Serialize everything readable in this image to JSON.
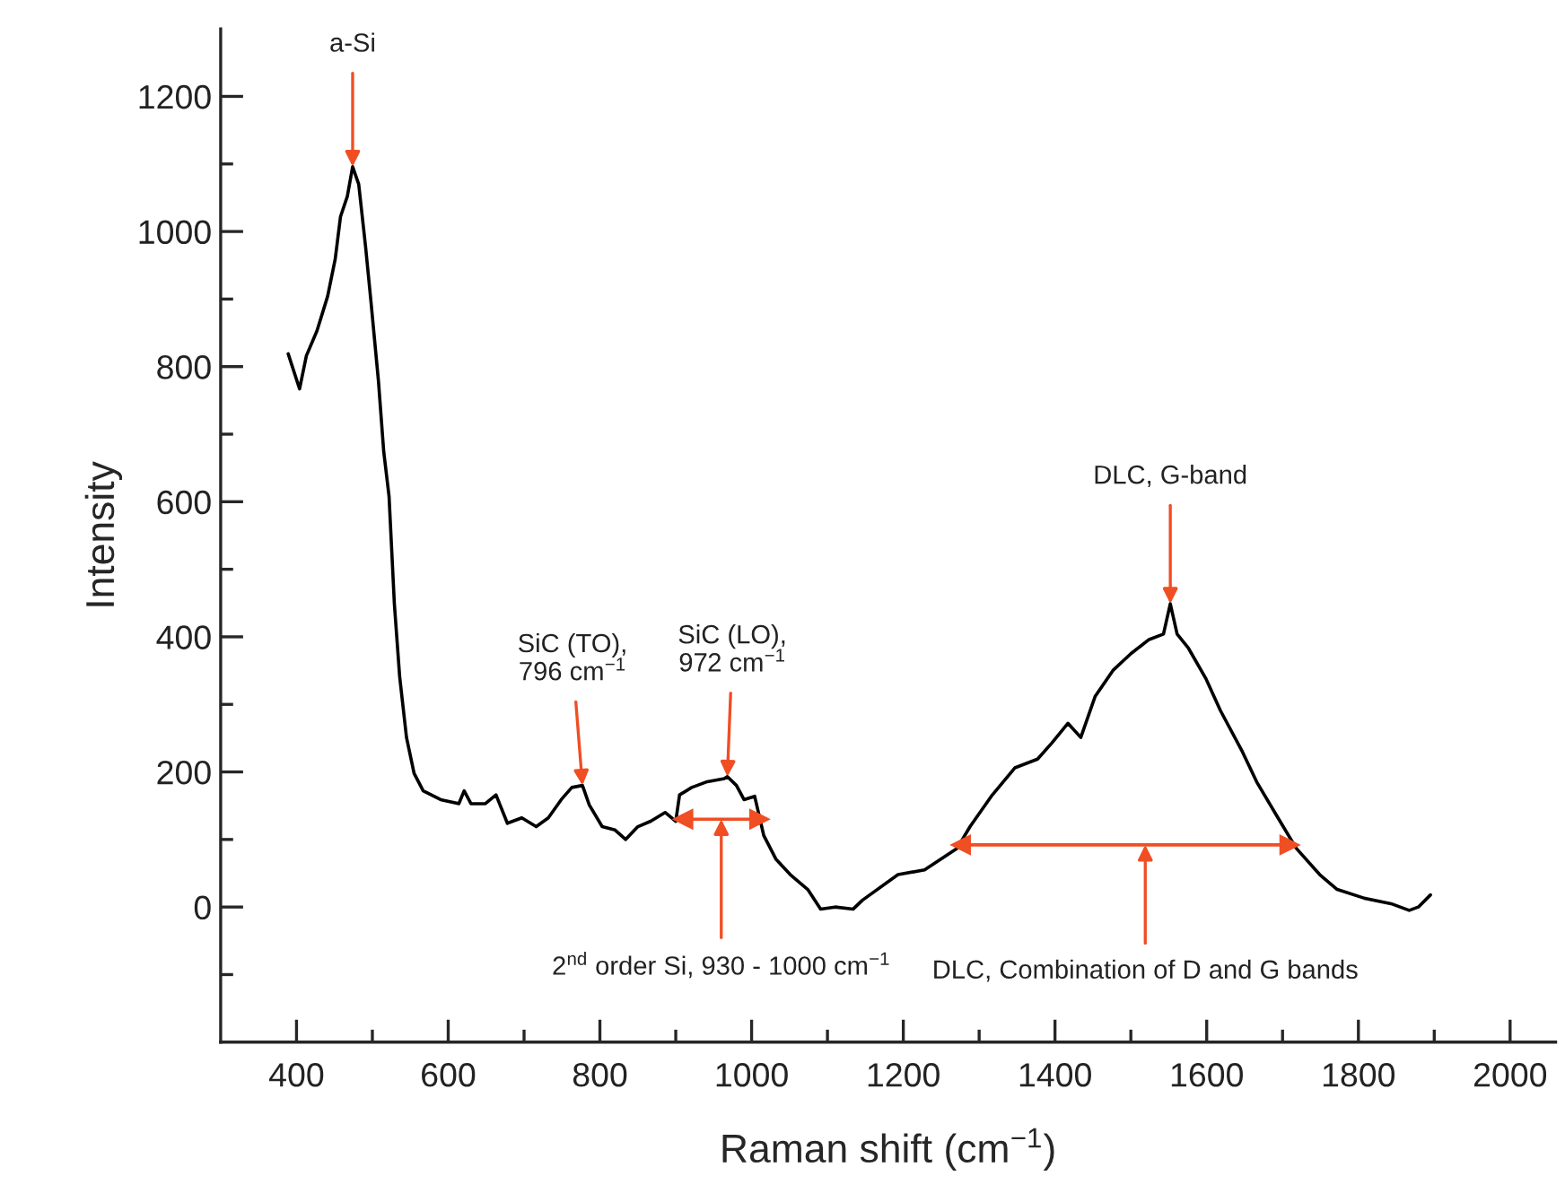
{
  "chart_data": {
    "type": "line",
    "xlabel": "Raman shift (cm$^{−1}$)",
    "ylabel": "Intensity",
    "xlim": [
      300,
      2060
    ],
    "ylim": [
      -200,
      1300
    ],
    "xticks": [
      400,
      {
        "value": 500,
        "label": null
      },
      600,
      {
        "value": 700,
        "label": null
      },
      800,
      {
        "value": 900,
        "label": null
      },
      1000,
      {
        "value": 1100,
        "label": null
      },
      1200,
      {
        "value": 1300,
        "label": null
      },
      1400,
      {
        "value": 1500,
        "label": null
      },
      1600,
      {
        "value": 1700,
        "label": null
      },
      1800,
      {
        "value": 1900,
        "label": null
      },
      2000
    ],
    "yticks": [
      {
        "value": -100,
        "label": null
      },
      0,
      {
        "value": 100,
        "label": null
      },
      200,
      {
        "value": 300,
        "label": null
      },
      400,
      {
        "value": 500,
        "label": null
      },
      600,
      {
        "value": 700,
        "label": null
      },
      800,
      {
        "value": 900,
        "label": null
      },
      1000,
      {
        "value": 1100,
        "label": null
      },
      1200
    ],
    "grid": false,
    "marker": "none",
    "line_style": "solid",
    "series": [
      {
        "color": "#000000",
        "x": [
          389,
          404,
          413,
          427,
          441,
          451,
          458,
          467,
          474,
          482,
          491,
          498,
          508,
          515,
          522,
          529,
          536,
          545,
          555,
          567,
          590,
          614,
          621,
          630,
          649,
          663,
          678,
          697,
          716,
          732,
          749,
          763,
          777,
          786,
          803,
          820,
          834,
          850,
          867,
          886,
          900,
          905,
          921,
          940,
          964,
          968,
          980,
          990,
          1004,
          1016,
          1032,
          1051,
          1074,
          1091,
          1110,
          1134,
          1146,
          1193,
          1228,
          1271,
          1288,
          1316,
          1347,
          1377,
          1396,
          1417,
          1434,
          1453,
          1477,
          1500,
          1524,
          1543,
          1552,
          1561,
          1576,
          1599,
          1618,
          1647,
          1666,
          1694,
          1718,
          1749,
          1772,
          1808,
          1843,
          1867,
          1879,
          1895
        ],
        "values": [
          819,
          767,
          816,
          853,
          904,
          959,
          1022,
          1052,
          1096,
          1070,
          978,
          898,
          779,
          674,
          608,
          449,
          341,
          251,
          198,
          172,
          159,
          153,
          172,
          153,
          153,
          166,
          124,
          132,
          119,
          132,
          159,
          177,
          180,
          151,
          119,
          114,
          100,
          119,
          127,
          140,
          127,
          166,
          177,
          185,
          190,
          193,
          180,
          159,
          164,
          106,
          71,
          48,
          26,
          -3,
          0,
          -3,
          10,
          48,
          55,
          87,
          119,
          164,
          206,
          219,
          243,
          272,
          251,
          312,
          351,
          375,
          396,
          404,
          449,
          404,
          383,
          338,
          291,
          230,
          185,
          132,
          87,
          48,
          26,
          13,
          5,
          -5,
          0,
          18
        ]
      },
      {
        "type": "line",
        "color": "#f04e23",
        "marker": "triangle",
        "x": [
          910,
          1010
        ],
        "values": [
          130,
          130
        ]
      },
      {
        "type": "line",
        "color": "#f04e23",
        "marker": "triangle",
        "x": [
          1276,
          1709
        ],
        "values": [
          92,
          92
        ]
      }
    ],
    "annotations": [
      {
        "text": "a-Si",
        "x": 474,
        "y": 1096
      },
      {
        "text": "SiC (TO),\n796 cm$^{−1}$",
        "x": 777,
        "y": 180
      },
      {
        "text": "SiC (LO),\n972 cm$^{−1}$",
        "x": 968,
        "y": 193
      },
      {
        "text": "DLC, G-band",
        "x": 1552,
        "y": 449
      },
      {
        "text": "2$^{nd}$ order Si, 930 - 1000 cm$^{−1}$",
        "x": 960,
        "y": 130
      },
      {
        "text": "DLC, Combination of D and G bands",
        "x": 1519,
        "y": 92
      }
    ]
  }
}
